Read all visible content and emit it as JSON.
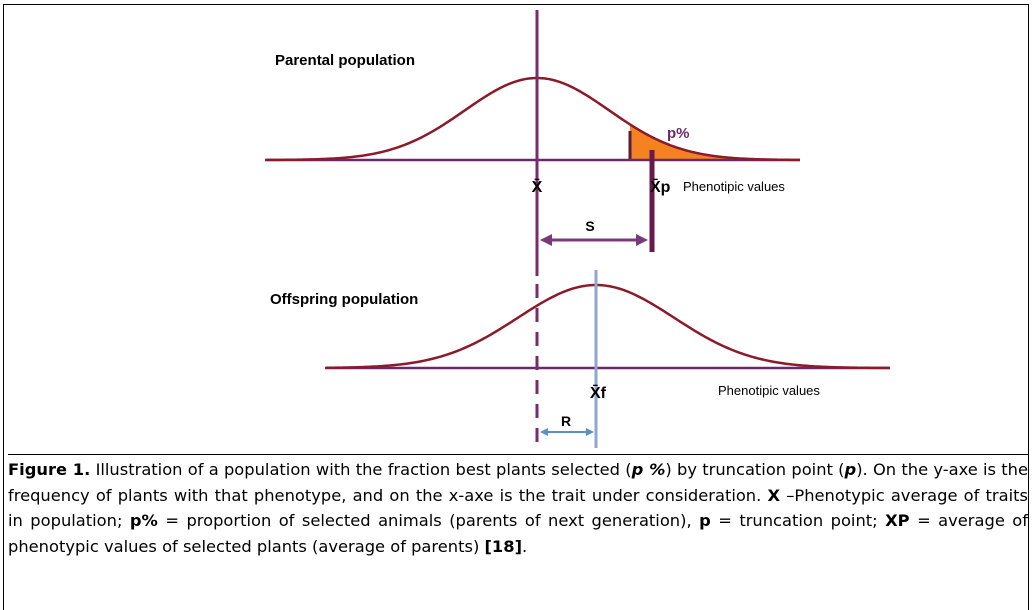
{
  "figure": {
    "labels": {
      "parental": "Parental population",
      "percent": "p%",
      "mean": "X̄",
      "parent_mean": "X̄p",
      "phenotypic_top": "Phenotipic values",
      "selection_differential": "S",
      "offspring": "Offspring population",
      "offspring_mean": "X̄f",
      "phenotypic_bottom": "Phenotipic values",
      "response": "R"
    }
  },
  "caption": {
    "runs": [
      {
        "text": "Figure 1.",
        "bold": true
      },
      {
        "text": " Illustration of a population with the fraction best plants selected ("
      },
      {
        "text": "p %",
        "bold": true,
        "italic": true
      },
      {
        "text": ") by truncation point ("
      },
      {
        "text": "p",
        "bold": true,
        "italic": true
      },
      {
        "text": "). On the y-axe is the frequency of plants with that phenotype, and on the x-axe is the trait under consideration. "
      },
      {
        "text": "X",
        "bold": true
      },
      {
        "text": " –Phenotypic average of traits in population; "
      },
      {
        "text": "p%",
        "bold": true
      },
      {
        "text": " = proportion of selected animals (parents of next generation), "
      },
      {
        "text": "p",
        "bold": true
      },
      {
        "text": " = truncation point; "
      },
      {
        "text": "XP",
        "bold": true
      },
      {
        "text": " = average of phenotypic values of selected plants (average of parents) "
      },
      {
        "text": "[18]",
        "bold": true
      },
      {
        "text": "."
      }
    ]
  }
}
